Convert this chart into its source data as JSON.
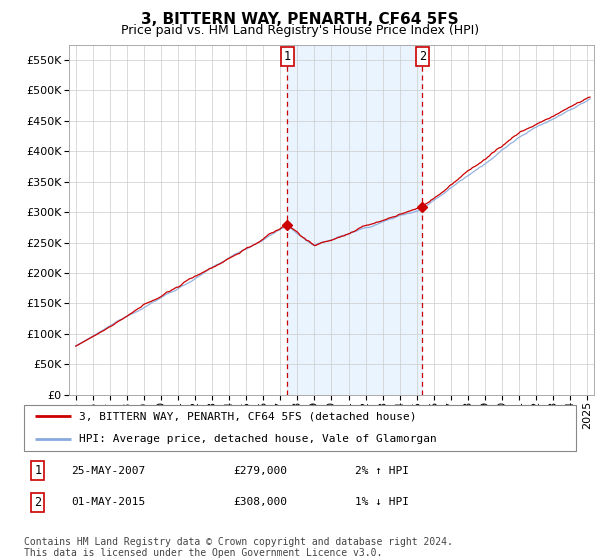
{
  "title": "3, BITTERN WAY, PENARTH, CF64 5FS",
  "subtitle": "Price paid vs. HM Land Registry's House Price Index (HPI)",
  "property_label": "3, BITTERN WAY, PENARTH, CF64 5FS (detached house)",
  "hpi_label": "HPI: Average price, detached house, Vale of Glamorgan",
  "sale1_date": "25-MAY-2007",
  "sale1_price": "£279,000",
  "sale1_info": "2% ↑ HPI",
  "sale2_date": "01-MAY-2015",
  "sale2_price": "£308,000",
  "sale2_info": "1% ↓ HPI",
  "sale1_x": 2007.4,
  "sale2_x": 2015.33,
  "sale1_y": 279000,
  "sale2_y": 308000,
  "ylim": [
    0,
    575000
  ],
  "xlim_start": 1994.6,
  "xlim_end": 2025.4,
  "yticks": [
    0,
    50000,
    100000,
    150000,
    200000,
    250000,
    300000,
    350000,
    400000,
    450000,
    500000,
    550000
  ],
  "property_color": "#cc0000",
  "hpi_color": "#88aadd",
  "vline_color": "#cc0000",
  "annotation_border": "#cc0000",
  "grid_color": "#cccccc",
  "shaded_region_color": "#ddeeff",
  "footer": "Contains HM Land Registry data © Crown copyright and database right 2024.\nThis data is licensed under the Open Government Licence v3.0.",
  "title_fontsize": 11,
  "subtitle_fontsize": 9,
  "tick_fontsize": 8,
  "legend_fontsize": 8,
  "annotation_fontsize": 8,
  "footer_fontsize": 7
}
